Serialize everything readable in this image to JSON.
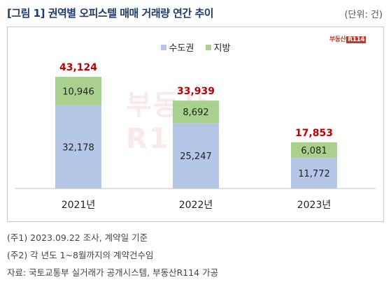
{
  "title": "[그림 1] 권역별 오피스텔 매매 거래량 연간 추이",
  "unit": "(단위: 건)",
  "brand": {
    "text": "부동산",
    "r_text": "R114",
    "watermark": "부동산R114"
  },
  "colors": {
    "capital": "#b4c7e7",
    "regional": "#a9d18e",
    "total_label": "#c00000"
  },
  "chart_data": {
    "type": "bar",
    "stacked": true,
    "categories": [
      "2021년",
      "2022년",
      "2023년"
    ],
    "series": [
      {
        "name": "수도권",
        "values": [
          32178,
          25247,
          11772
        ]
      },
      {
        "name": "지방",
        "values": [
          10946,
          8692,
          6081
        ]
      }
    ],
    "totals": [
      43124,
      33939,
      17853
    ],
    "value_labels": {
      "capital": [
        "32,178",
        "25,247",
        "11,772"
      ],
      "regional": [
        "10,946",
        "8,692",
        "6,081"
      ],
      "totals": [
        "43,124",
        "33,939",
        "17,853"
      ]
    },
    "legend_position": "top-center",
    "grid": false
  },
  "notes": [
    "(주1) 2023.09.22 조사, 계약일 기준",
    "(주2) 각 년도 1~8월까지의 계약건수임",
    "자료: 국토교통부 실거래가 공개시스템, 부동산R114 가공"
  ]
}
